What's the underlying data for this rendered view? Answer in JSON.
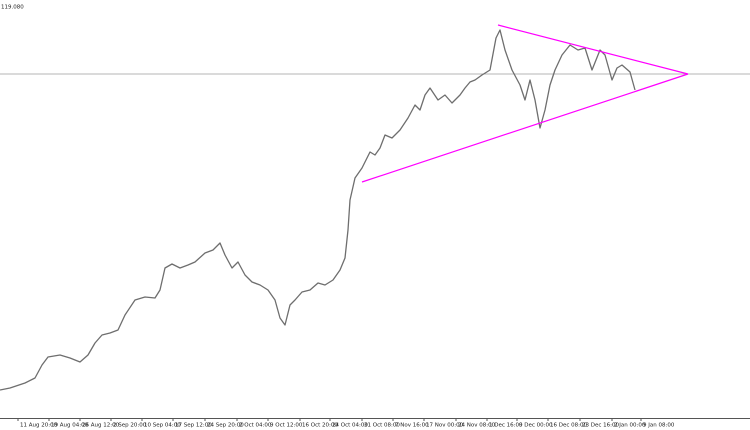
{
  "chart_data": {
    "type": "line",
    "label": "119.080",
    "xlim": [
      0,
      750
    ],
    "ylim": [
      0,
      418
    ],
    "xticks": [
      {
        "value": 18,
        "label": "11 Aug 20:00"
      },
      {
        "value": 49,
        "label": "19 Aug 04:00"
      },
      {
        "value": 80,
        "label": "26 Aug 12:00"
      },
      {
        "value": 111,
        "label": "2 Sep 20:00"
      },
      {
        "value": 142,
        "label": "10 Sep 04:00"
      },
      {
        "value": 173,
        "label": "17 Sep 12:00"
      },
      {
        "value": 205,
        "label": "24 Sep 20:00"
      },
      {
        "value": 237,
        "label": "2 Oct 04:00"
      },
      {
        "value": 268,
        "label": "9 Oct 12:00"
      },
      {
        "value": 300,
        "label": "16 Oct 20:00"
      },
      {
        "value": 330,
        "label": "24 Oct 04:00"
      },
      {
        "value": 362,
        "label": "31 Oct 08:00"
      },
      {
        "value": 393,
        "label": "7 Nov 16:00"
      },
      {
        "value": 424,
        "label": "17 Nov 00:00"
      },
      {
        "value": 456,
        "label": "24 Nov 08:00"
      },
      {
        "value": 487,
        "label": "1 Dec 16:00"
      },
      {
        "value": 517,
        "label": "9 Dec 00:00"
      },
      {
        "value": 548,
        "label": "16 Dec 08:00"
      },
      {
        "value": 580,
        "label": "23 Dec 16:00"
      },
      {
        "value": 612,
        "label": "2 Jan 00:00"
      },
      {
        "value": 641,
        "label": "9 Jan 08:00"
      }
    ],
    "series": [
      {
        "color": "#6e6e6e",
        "x": [
          0,
          10,
          25,
          35,
          42,
          48,
          60,
          70,
          80,
          88,
          95,
          102,
          110,
          118,
          125,
          135,
          145,
          155,
          160,
          165,
          172,
          180,
          188,
          195,
          205,
          213,
          220,
          225,
          232,
          238,
          245,
          252,
          260,
          268,
          275,
          280,
          285,
          290,
          295,
          302,
          310,
          318,
          325,
          333,
          340,
          345,
          348,
          350,
          355,
          362,
          370,
          375,
          380,
          385,
          392,
          400,
          408,
          415,
          420,
          425,
          430,
          438,
          445,
          452,
          460,
          465,
          470,
          475,
          482,
          490,
          496,
          500,
          505,
          512,
          520,
          525,
          530,
          535,
          540,
          545,
          550,
          555,
          562,
          570,
          578,
          585,
          592,
          600,
          605,
          612,
          617,
          622,
          630,
          635
        ],
        "values": [
          28,
          30,
          35,
          40,
          53,
          61,
          63,
          60,
          56,
          63,
          75,
          83,
          85,
          88,
          103,
          118,
          121,
          120,
          128,
          150,
          154,
          150,
          153,
          156,
          165,
          168,
          175,
          163,
          150,
          156,
          143,
          136,
          133,
          128,
          118,
          100,
          93,
          113,
          118,
          126,
          128,
          135,
          133,
          138,
          148,
          160,
          188,
          218,
          240,
          250,
          266,
          263,
          270,
          283,
          280,
          288,
          300,
          313,
          308,
          323,
          330,
          318,
          323,
          315,
          323,
          330,
          336,
          338,
          343,
          348,
          380,
          388,
          368,
          348,
          333,
          318,
          338,
          318,
          290,
          308,
          333,
          348,
          363,
          373,
          368,
          370,
          348,
          368,
          363,
          338,
          350,
          353,
          346,
          328
        ]
      }
    ],
    "trendlines": {
      "color": "#ff00ff",
      "lines": [
        {
          "x": [
            498,
            688
          ],
          "y": [
            393,
            344
          ]
        },
        {
          "x": [
            362,
            688
          ],
          "y": [
            236,
            344
          ]
        }
      ]
    },
    "hline": {
      "value": 344,
      "color": "#b4b4b4"
    }
  }
}
